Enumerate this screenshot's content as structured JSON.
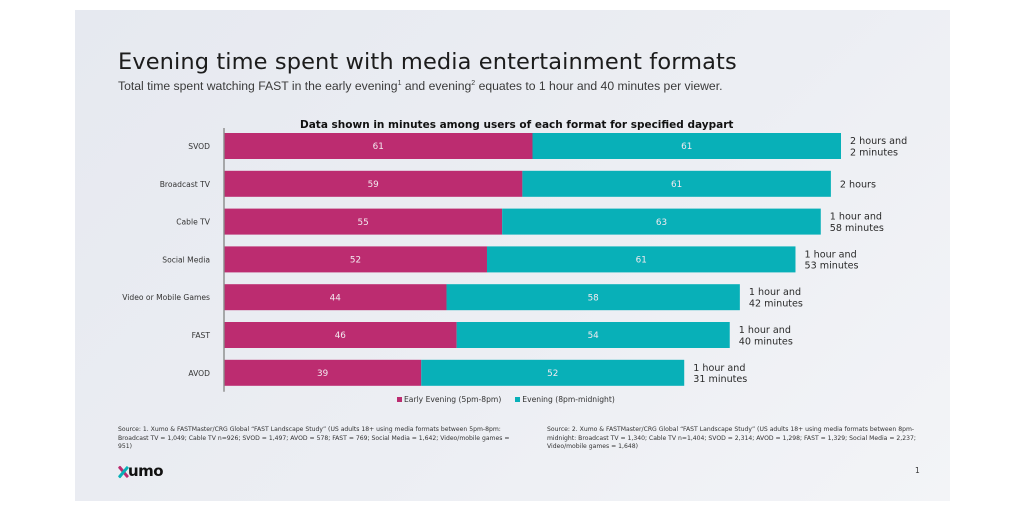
{
  "header": {
    "title": "Evening time spent with media entertainment formats",
    "subtitle_part1": "Total time spent watching FAST in the early evening",
    "subtitle_sup1": "1",
    "subtitle_part2": " and evening",
    "subtitle_sup2": "2",
    "subtitle_part3": " equates to 1 hour and 40 minutes per viewer."
  },
  "colors": {
    "early_evening": "#bc2c70",
    "evening": "#08b0b8",
    "axis": "#8a8a8a"
  },
  "chart_data": {
    "type": "bar",
    "orientation": "horizontal",
    "stacked": true,
    "title": "Data shown in minutes among users of each format for specified daypart",
    "xlabel": "",
    "ylabel": "",
    "units": "minutes",
    "categories": [
      "SVOD",
      "Broadcast TV",
      "Cable TV",
      "Social Media",
      "Video or Mobile Games",
      "FAST",
      "AVOD"
    ],
    "series": [
      {
        "name": "Early Evening (5pm-8pm)",
        "values": [
          61,
          59,
          55,
          52,
          44,
          46,
          39
        ]
      },
      {
        "name": "Evening (8pm-midnight)",
        "values": [
          61,
          61,
          63,
          61,
          58,
          54,
          52
        ]
      }
    ],
    "total_labels": [
      [
        "2 hours and",
        "2 minutes"
      ],
      [
        "2 hours"
      ],
      [
        "1 hour and",
        "58 minutes"
      ],
      [
        "1 hour and",
        "53 minutes"
      ],
      [
        "1 hour and",
        "42 minutes"
      ],
      [
        "1 hour and",
        "40 minutes"
      ],
      [
        "1 hour and",
        "31 minutes"
      ]
    ],
    "xlim": [
      0,
      122
    ],
    "grid": false,
    "legend_position": "bottom-center"
  },
  "legend": {
    "items": [
      {
        "label": "Early Evening (5pm-8pm)"
      },
      {
        "label": "Evening (8pm-midnight)"
      }
    ]
  },
  "footer": {
    "source_left": "Source: 1. Xumo & FASTMaster/CRG Global “FAST Landscape Study” (US adults 18+ using media formats between 5pm-8pm: Broadcast TV = 1,049; Cable TV n=926; SVOD = 1,497; AVOD = 578; FAST = 769; Social Media = 1,642; Video/mobile games = 951)",
    "source_right": "Source: 2. Xumo & FASTMaster/CRG Global “FAST Landscape Study” (US adults 18+ using media formats between 8pm-midnight: Broadcast TV = 1,340; Cable TV n=1,404; SVOD = 2,314; AVOD = 1,298; FAST = 1,329; Social Media = 2,237; Video/mobile games = 1,648)",
    "logo_text": "umo",
    "page_number": "1"
  }
}
